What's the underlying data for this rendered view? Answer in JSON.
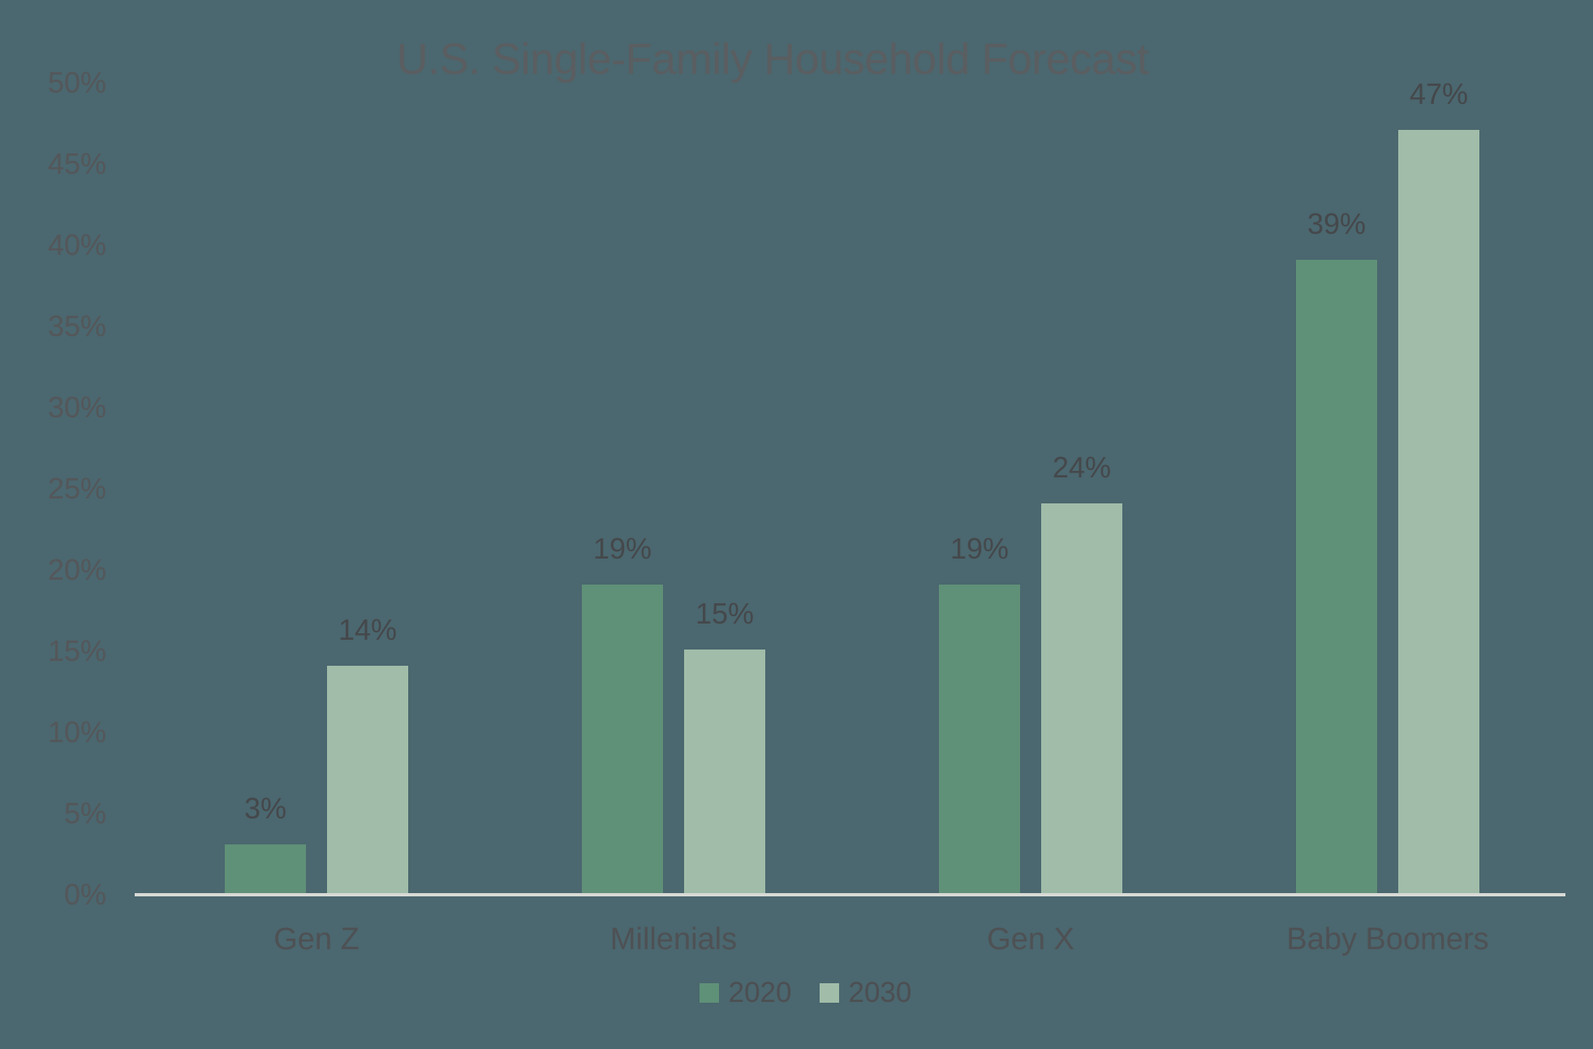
{
  "chart_data": {
    "type": "bar",
    "title": "U.S. Single-Family Household Forecast",
    "categories": [
      "Gen Z",
      "Millenials",
      "Gen X",
      "Baby Boomers"
    ],
    "series": [
      {
        "name": "2020",
        "color": "#5f9178",
        "values": [
          3,
          19,
          19,
          39
        ],
        "labels": [
          "3%",
          "19%",
          "19%",
          "39%"
        ]
      },
      {
        "name": "2030",
        "color": "#a1bda9",
        "values": [
          14,
          15,
          24,
          47
        ],
        "labels": [
          "14%",
          "15%",
          "24%",
          "47%"
        ]
      }
    ],
    "value_suffix": "%",
    "ylim": [
      0,
      50
    ],
    "ytick_values": [
      0,
      5,
      10,
      15,
      20,
      25,
      30,
      35,
      40,
      45,
      50
    ],
    "ytick_labels": [
      "0%",
      "5%",
      "10%",
      "15%",
      "20%",
      "25%",
      "30%",
      "35%",
      "40%",
      "45%",
      "50%"
    ],
    "legend": [
      "2020",
      "2030"
    ],
    "legend_position": "bottom",
    "grid": false,
    "background_color": "#4b676f",
    "axis_line_color": "#d8dad6",
    "text_colors": {
      "title": "#5a5e61",
      "ticks": "#54575a",
      "data_labels": "#45484b",
      "category_labels": "#4e5154",
      "legend": "#4c4f52"
    }
  }
}
